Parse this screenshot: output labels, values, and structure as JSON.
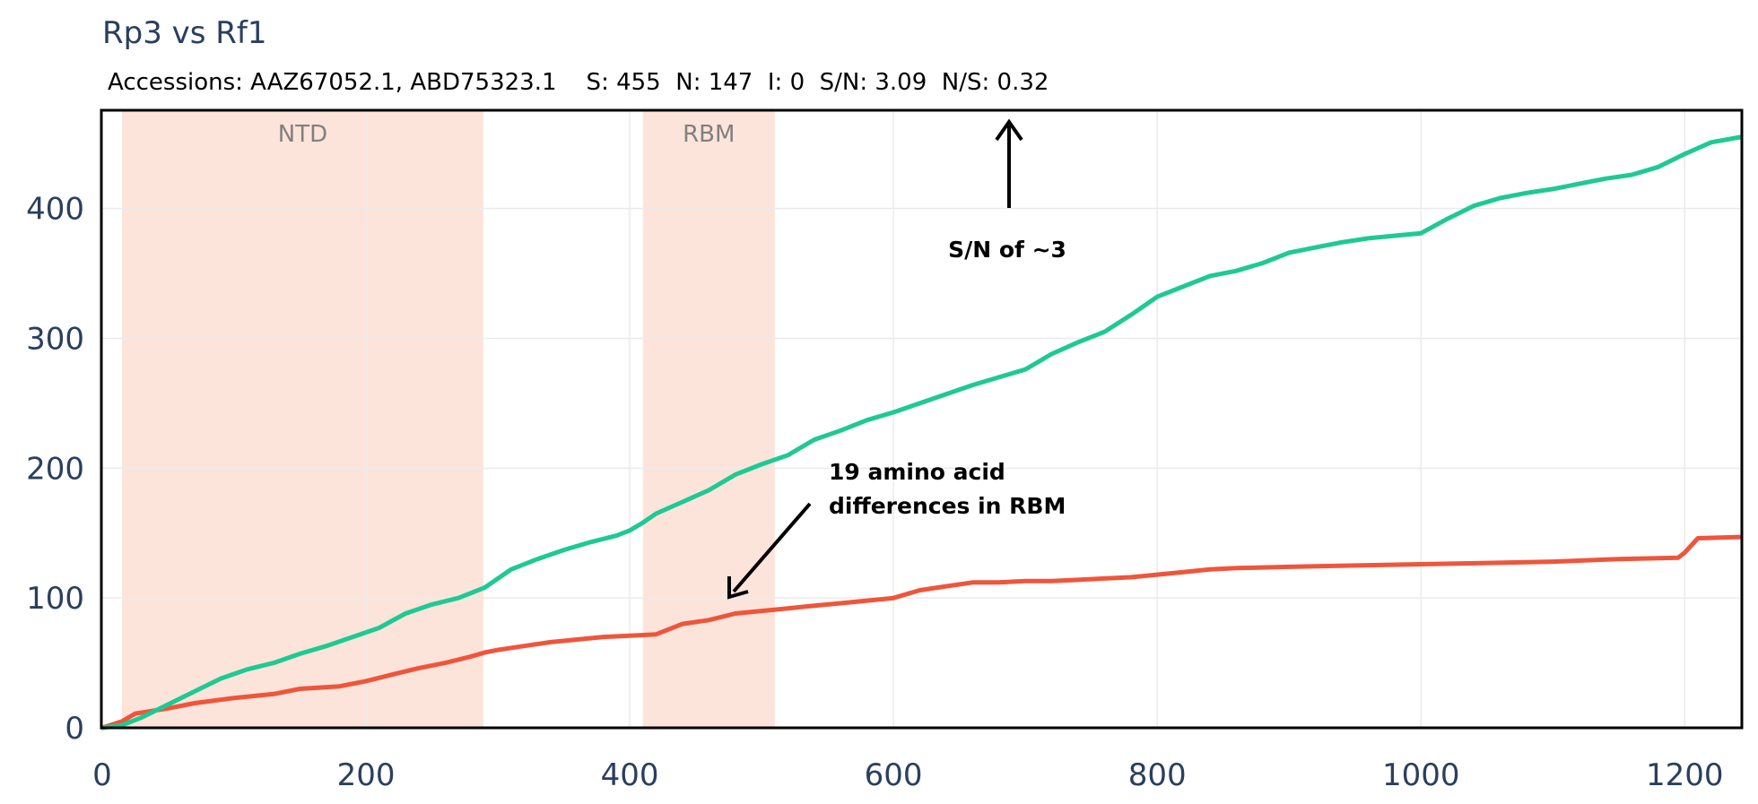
{
  "chart_data": {
    "type": "line",
    "title": "Rp3 vs Rf1",
    "subtitle": "Accessions: AAZ67052.1, ABD75323.1    S: 455  N: 147  I: 0  S/N: 3.09  N/S: 0.32",
    "xlim": [
      0,
      1242
    ],
    "ylim": [
      0,
      475
    ],
    "x_ticks": [
      0,
      200,
      400,
      600,
      800,
      1000,
      1200
    ],
    "y_ticks": [
      0,
      100,
      200,
      300,
      400
    ],
    "grid": true,
    "colors": {
      "S": "#1fc993",
      "N": "#ef553b",
      "I": "#fdb370",
      "region": "#fde4da"
    },
    "regions": [
      {
        "label": "NTD",
        "x0": 15,
        "x1": 289
      },
      {
        "label": "RBM",
        "x0": 410,
        "x1": 510
      }
    ],
    "series": [
      {
        "key": "S",
        "x": [
          0,
          15,
          30,
          50,
          70,
          90,
          110,
          130,
          150,
          170,
          190,
          210,
          230,
          250,
          270,
          290,
          310,
          330,
          350,
          370,
          390,
          400,
          410,
          420,
          440,
          460,
          480,
          500,
          520,
          540,
          560,
          580,
          600,
          620,
          640,
          660,
          680,
          700,
          720,
          740,
          760,
          780,
          800,
          820,
          840,
          860,
          880,
          900,
          920,
          940,
          960,
          980,
          1000,
          1020,
          1040,
          1060,
          1080,
          1100,
          1120,
          1140,
          1160,
          1180,
          1200,
          1220,
          1242
        ],
        "values": [
          0,
          2,
          8,
          18,
          28,
          38,
          45,
          50,
          57,
          63,
          70,
          77,
          88,
          95,
          100,
          108,
          122,
          130,
          137,
          143,
          148,
          152,
          158,
          165,
          174,
          183,
          195,
          203,
          210,
          222,
          229,
          237,
          243,
          250,
          257,
          264,
          270,
          276,
          288,
          297,
          305,
          318,
          332,
          340,
          348,
          352,
          358,
          366,
          370,
          374,
          377,
          379,
          381,
          392,
          402,
          408,
          412,
          415,
          419,
          423,
          426,
          432,
          442,
          451,
          455
        ]
      },
      {
        "key": "N",
        "x": [
          0,
          15,
          25,
          50,
          70,
          100,
          130,
          150,
          180,
          200,
          220,
          240,
          260,
          280,
          290,
          300,
          320,
          340,
          360,
          380,
          400,
          420,
          440,
          460,
          480,
          500,
          520,
          540,
          560,
          580,
          600,
          620,
          640,
          660,
          680,
          700,
          720,
          740,
          760,
          780,
          800,
          820,
          840,
          860,
          900,
          950,
          1000,
          1050,
          1100,
          1150,
          1195,
          1200,
          1210,
          1242
        ],
        "values": [
          0,
          5,
          11,
          15,
          19,
          23,
          26,
          30,
          32,
          36,
          41,
          46,
          50,
          55,
          58,
          60,
          63,
          66,
          68,
          70,
          71,
          72,
          80,
          83,
          88,
          90,
          92,
          94,
          96,
          98,
          100,
          106,
          109,
          112,
          112,
          113,
          113,
          114,
          115,
          116,
          118,
          120,
          122,
          123,
          124,
          125,
          126,
          127,
          128,
          130,
          131,
          135,
          146,
          147
        ]
      },
      {
        "key": "I",
        "x": [
          0,
          1242
        ],
        "values": [
          0,
          0
        ]
      }
    ],
    "annotations": [
      {
        "text": "S/N of ~3"
      },
      {
        "text_lines": [
          "19 amino acid",
          "differences in RBM"
        ]
      }
    ]
  }
}
